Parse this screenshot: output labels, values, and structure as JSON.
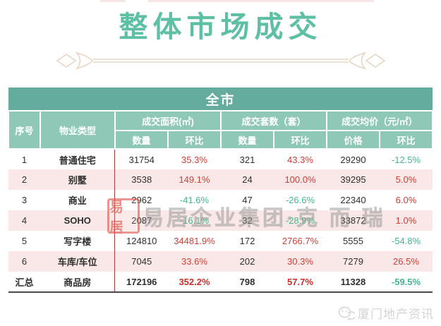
{
  "page": {
    "title": "整体市场成交"
  },
  "table": {
    "banner": "全市",
    "headers": {
      "col_no": "序号",
      "col_type": "物业类型",
      "group_area": "成交面积(㎡)",
      "group_units": "成交套数（套）",
      "group_price": "成交均价（元/㎡）"
    },
    "sub_labels": [
      "数量",
      "环比",
      "数量",
      "环比",
      "价格",
      "环比"
    ],
    "rows": [
      {
        "no": "1",
        "type": "普通住宅",
        "area": "31754",
        "area_mom": "35.3%",
        "units": "321",
        "units_mom": "43.3%",
        "price": "29290",
        "price_mom": "-12.5%"
      },
      {
        "no": "2",
        "type": "别墅",
        "area": "3538",
        "area_mom": "149.1%",
        "units": "24",
        "units_mom": "100.0%",
        "price": "39295",
        "price_mom": "5.0%"
      },
      {
        "no": "3",
        "type": "商业",
        "area": "2962",
        "area_mom": "-41.6%",
        "units": "47",
        "units_mom": "-26.6%",
        "price": "22340",
        "price_mom": "6.0%"
      },
      {
        "no": "4",
        "type": "SOHO",
        "area": "2087",
        "area_mom": "-16.1%",
        "units": "32",
        "units_mom": "-28.9%",
        "price": "33872",
        "price_mom": "1.0%"
      },
      {
        "no": "5",
        "type": "写字楼",
        "area": "124810",
        "area_mom": "34481.9%",
        "units": "172",
        "units_mom": "2766.7%",
        "price": "5555",
        "price_mom": "-54.8%"
      },
      {
        "no": "6",
        "type": "车库/车位",
        "area": "7045",
        "area_mom": "33.6%",
        "units": "202",
        "units_mom": "30.3%",
        "price": "7279",
        "price_mom": "26.5%"
      }
    ],
    "total": {
      "no": "汇总",
      "type": "商品房",
      "area": "172196",
      "area_mom": "352.2%",
      "units": "798",
      "units_mom": "57.7%",
      "price": "11328",
      "price_mom": "-59.5%"
    }
  },
  "watermark": {
    "seal": "易居",
    "text": "易居企业集团·克 而 瑞"
  },
  "footer": {
    "brand": "厦门地产资讯"
  },
  "colors": {
    "title_teal": "#5dbfa3",
    "banner_teal": "#64ac9d",
    "header_mint": "#90c8b7",
    "row_pink": "#f9e8e7",
    "pct_up_red": "#cf4036",
    "pct_down_green": "#47b592",
    "separator_red": "#9e3d36",
    "ornament_beige": "#e7d6c5"
  }
}
